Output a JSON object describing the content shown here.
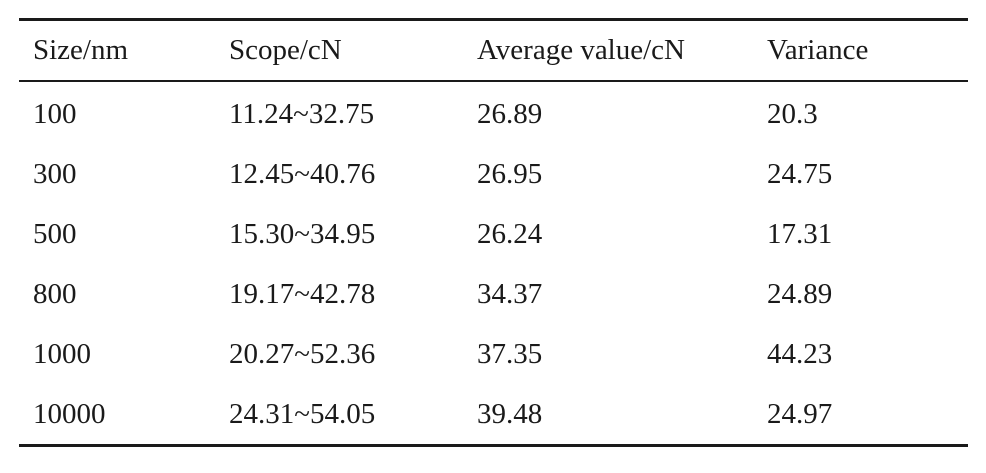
{
  "table": {
    "headers": [
      "Size/nm",
      "Scope/cN",
      "Average value/cN",
      "Variance"
    ],
    "rows": [
      [
        "100",
        "11.24~32.75",
        "26.89",
        "20.3"
      ],
      [
        "300",
        "12.45~40.76",
        "26.95",
        "24.75"
      ],
      [
        "500",
        "15.30~34.95",
        "26.24",
        "17.31"
      ],
      [
        "800",
        "19.17~42.78",
        "34.37",
        "24.89"
      ],
      [
        "1000",
        "20.27~52.36",
        "37.35",
        "44.23"
      ],
      [
        "10000",
        "24.31~54.05",
        "39.48",
        "24.97"
      ]
    ]
  }
}
